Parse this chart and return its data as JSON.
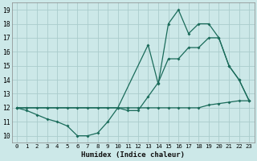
{
  "xlabel": "Humidex (Indice chaleur)",
  "bg_color": "#cce8e8",
  "grid_color": "#aacccc",
  "line_color": "#1a6b5a",
  "xlim": [
    -0.5,
    23.5
  ],
  "ylim": [
    9.5,
    19.5
  ],
  "xticks": [
    0,
    1,
    2,
    3,
    4,
    5,
    6,
    7,
    8,
    9,
    10,
    11,
    12,
    13,
    14,
    15,
    16,
    17,
    18,
    19,
    20,
    21,
    22,
    23
  ],
  "yticks": [
    10,
    11,
    12,
    13,
    14,
    15,
    16,
    17,
    18,
    19
  ],
  "line1_x": [
    0,
    1,
    2,
    3,
    4,
    5,
    6,
    7,
    8,
    9,
    10,
    11,
    12,
    13,
    14,
    15,
    16,
    17,
    18,
    19,
    20,
    21,
    22,
    23
  ],
  "line1_y": [
    12,
    12,
    12,
    12,
    12,
    12,
    12,
    12,
    12,
    12,
    12,
    12,
    12,
    12,
    12,
    12,
    12,
    12,
    12,
    12.2,
    12.3,
    12.4,
    12.5,
    12.5
  ],
  "line2_x": [
    0,
    1,
    2,
    3,
    4,
    5,
    6,
    7,
    8,
    9,
    10,
    11,
    12,
    13,
    14,
    15,
    16,
    17,
    18,
    19,
    20,
    21,
    22,
    23
  ],
  "line2_y": [
    12,
    11.8,
    11.5,
    11.2,
    11.0,
    10.7,
    10.0,
    10.0,
    10.2,
    11.0,
    12.0,
    11.8,
    11.8,
    12.8,
    13.8,
    15.5,
    15.5,
    16.3,
    16.3,
    17.0,
    17.0,
    15.0,
    14.0,
    12.5
  ],
  "line3_x": [
    0,
    3,
    10,
    13,
    14,
    15,
    16,
    17,
    18,
    19,
    20,
    21,
    22,
    23
  ],
  "line3_y": [
    12,
    12,
    12,
    16.5,
    13.7,
    18.0,
    19.0,
    17.3,
    18.0,
    18.0,
    17.0,
    15.0,
    14.0,
    12.5
  ]
}
